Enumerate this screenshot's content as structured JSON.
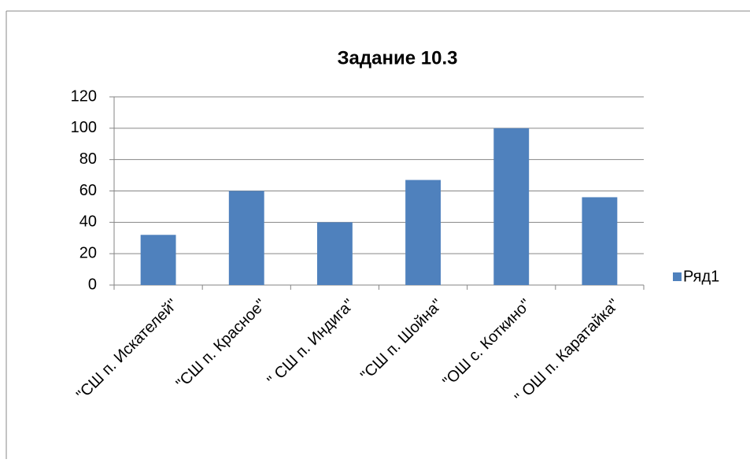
{
  "chart_data": {
    "type": "bar",
    "title": "Задание 10.3",
    "categories": [
      "\"СШ п. Искателей\"",
      "\"СШ п. Красное\"",
      "\" СШ п. Индига\"",
      "\"СШ п. Шойна\"",
      "\"ОШ с. Коткино\"",
      "\" ОШ п. Каратайка\""
    ],
    "series": [
      {
        "name": "Ряд1",
        "color": "#4f81bd",
        "values": [
          32,
          60,
          40,
          67,
          100,
          56
        ]
      }
    ],
    "ylim": [
      0,
      120
    ],
    "yticks": [
      0,
      20,
      40,
      60,
      80,
      100,
      120
    ],
    "grid": true,
    "legend": "right"
  }
}
